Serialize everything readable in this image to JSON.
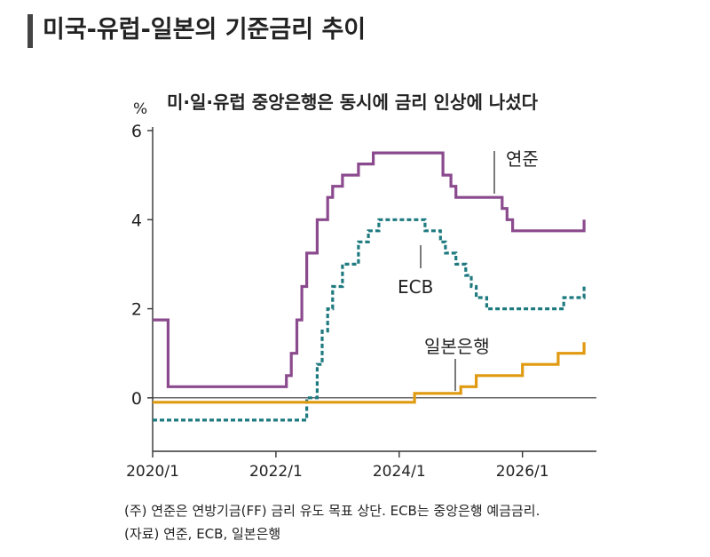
{
  "header": {
    "title": "미국-유럽-일본의 기준금리 추이"
  },
  "notes": {
    "note": "(주) 연준은 연방기금(FF) 금리 유도 목표 상단. ECB는 중앙은행 예금금리.",
    "source": "(자료) 연준, ECB, 일본은행"
  },
  "chart_data": {
    "type": "line",
    "subtitle": "미·일·유럽 중앙은행은 동시에 금리 인상에 나섰다",
    "ylabel": "%",
    "ylim": [
      -1,
      6
    ],
    "yticks": [
      0,
      2,
      4,
      6
    ],
    "xticks": [
      "2020/1",
      "2022/1",
      "2024/1",
      "2026/1"
    ],
    "xlim": [
      2020.0,
      2027.2
    ],
    "grid": false,
    "step": true,
    "colors": {
      "fed": "#8b4a8e",
      "ecb": "#1f7a80",
      "boj": "#e09a10",
      "zero": "#333333"
    },
    "series": [
      {
        "key": "fed",
        "name": "연준",
        "style": "solid",
        "x": [
          2020.0,
          2020.17,
          2020.25,
          2022.17,
          2022.25,
          2022.34,
          2022.42,
          2022.5,
          2022.67,
          2022.84,
          2022.92,
          2023.08,
          2023.17,
          2023.34,
          2023.42,
          2023.58,
          2024.71,
          2024.84,
          2024.92,
          2025.25,
          2025.67,
          2025.75,
          2025.84,
          2025.92,
          2026.17,
          2026.5,
          2026.92,
          2027.0
        ],
        "y": [
          1.75,
          1.75,
          0.25,
          0.5,
          1.0,
          1.75,
          2.5,
          3.25,
          4.0,
          4.5,
          4.75,
          5.0,
          5.0,
          5.25,
          5.25,
          5.5,
          5.0,
          4.75,
          4.5,
          4.5,
          4.25,
          4.0,
          3.75,
          3.75,
          3.75,
          3.75,
          3.75,
          4.0
        ]
      },
      {
        "key": "ecb",
        "name": "ECB",
        "style": "dashed",
        "x": [
          2020.0,
          2022.5,
          2022.67,
          2022.75,
          2022.84,
          2022.92,
          2023.08,
          2023.17,
          2023.34,
          2023.42,
          2023.5,
          2023.58,
          2023.67,
          2024.42,
          2024.5,
          2024.67,
          2024.75,
          2024.84,
          2024.92,
          2025.08,
          2025.17,
          2025.25,
          2025.34,
          2025.42,
          2025.58,
          2026.17,
          2026.5,
          2026.67,
          2026.92,
          2027.0
        ],
        "y": [
          -0.5,
          0.0,
          0.75,
          1.5,
          2.0,
          2.5,
          3.0,
          3.0,
          3.5,
          3.5,
          3.75,
          3.75,
          4.0,
          3.75,
          3.75,
          3.5,
          3.25,
          3.25,
          3.0,
          2.75,
          2.5,
          2.25,
          2.25,
          2.0,
          2.0,
          2.0,
          2.0,
          2.25,
          2.25,
          2.5
        ]
      },
      {
        "key": "boj",
        "name": "일본은행",
        "style": "solid",
        "x": [
          2020.0,
          2024.0,
          2024.25,
          2024.58,
          2025.0,
          2025.25,
          2025.92,
          2026.0,
          2026.5,
          2026.58,
          2026.92,
          2027.0
        ],
        "y": [
          -0.1,
          -0.1,
          0.1,
          0.1,
          0.25,
          0.5,
          0.5,
          0.75,
          0.75,
          1.0,
          1.0,
          1.25
        ]
      }
    ]
  }
}
